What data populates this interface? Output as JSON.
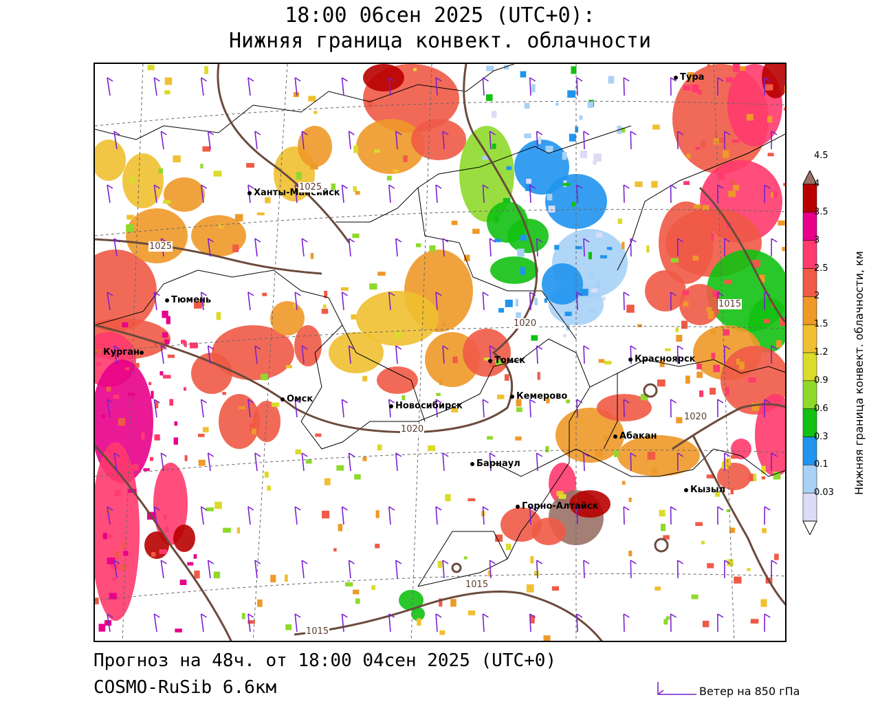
{
  "header": {
    "title_line1": "18:00 06сен 2025 (UTC+0):",
    "title_line2": "Нижняя граница конвект. облачности"
  },
  "footer": {
    "forecast": "Прогноз на 48ч. от 18:00 04сен 2025 (UTC+0)",
    "model": "COSMO-RuSib 6.6км",
    "wind_legend": "Ветер на 850 гПа"
  },
  "colorbar": {
    "title": "Нижняя граница конвект. облачности, км",
    "levels": [
      "0.03",
      "0.1",
      "0.3",
      "0.6",
      "0.9",
      "1.2",
      "1.5",
      "2",
      "2.5",
      "3",
      "3.5",
      "4",
      "4.5"
    ],
    "colors": [
      "#ffffff",
      "#dcdcf6",
      "#a7d1f6",
      "#2094ee",
      "#12c112",
      "#8fd92b",
      "#dbdb2b",
      "#f0c030",
      "#ee9928",
      "#f05a46",
      "#ff3a6e",
      "#e8008a",
      "#b80000",
      "#9a7166"
    ]
  },
  "cities": [
    {
      "name": "Тура"
    },
    {
      "name": "Ханты-Мансийск"
    },
    {
      "name": "Тюмень"
    },
    {
      "name": "Курган"
    },
    {
      "name": "Омск"
    },
    {
      "name": "Новосибирск"
    },
    {
      "name": "Томск"
    },
    {
      "name": "Кемерово"
    },
    {
      "name": "Красноярск"
    },
    {
      "name": "Абакан"
    },
    {
      "name": "Барнаул"
    },
    {
      "name": "Горно-Алтайск"
    },
    {
      "name": "Кызыл"
    }
  ],
  "isobars": [
    "1025",
    "1025",
    "1020",
    "1020",
    "1015",
    "1020",
    "1015",
    "1015"
  ],
  "colors": {
    "wind_barb": "#7a1fd0",
    "isobar": "#5a3a2e",
    "border": "#000000"
  }
}
